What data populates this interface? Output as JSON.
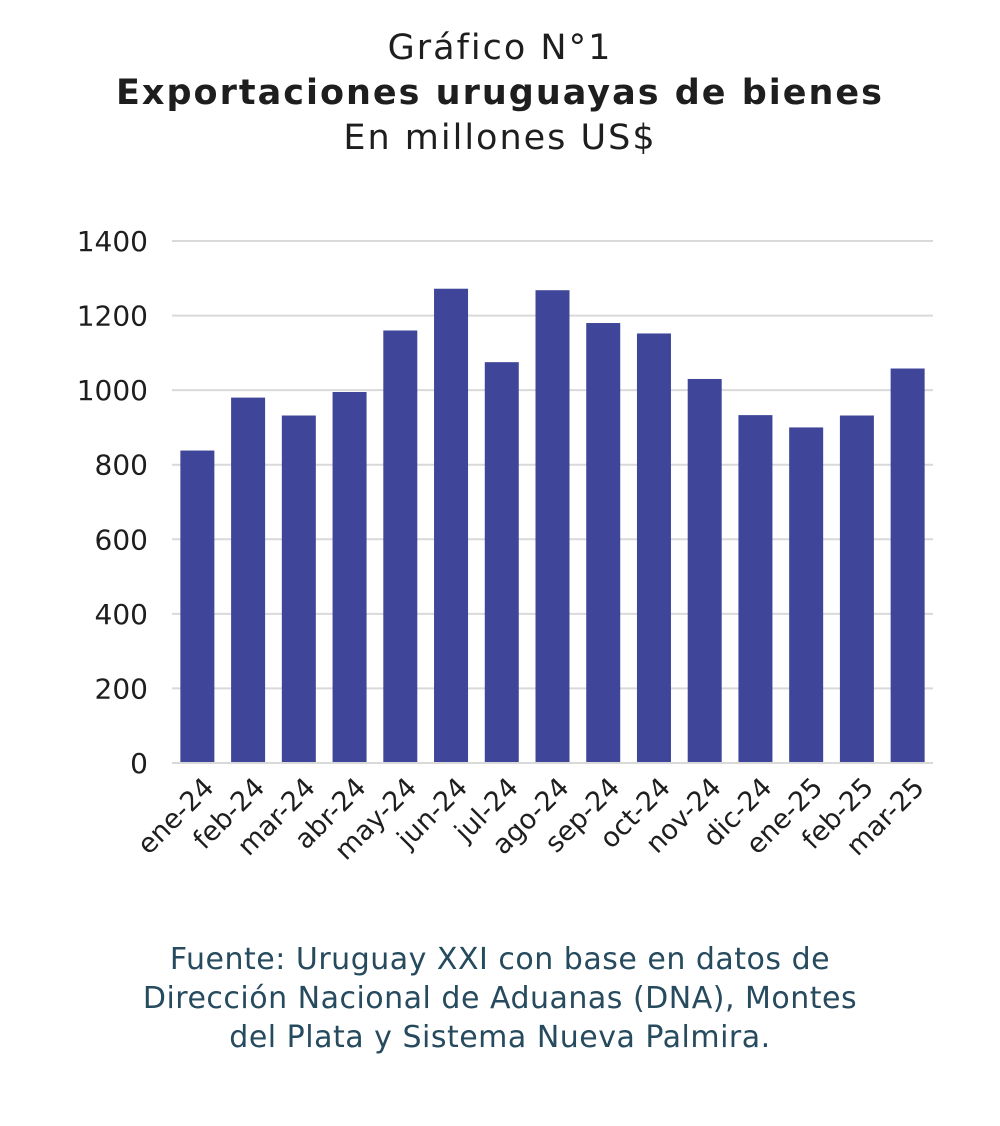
{
  "title": "Gráfico N°1",
  "subtitle": "Exportaciones uruguayas de bienes",
  "units": "En millones US$",
  "bar_color": "#3f4599",
  "grid_color": "#d9d9d9",
  "source_lines": [
    "Fuente: Uruguay XXI con base en datos de",
    "Dirección Nacional de Aduanas (DNA), Montes",
    "del Plata y Sistema Nueva Palmira."
  ],
  "chart_data": {
    "type": "bar",
    "title": "Exportaciones uruguayas de bienes",
    "subtitle": "En millones US$",
    "xlabel": "",
    "ylabel": "",
    "categories": [
      "ene-24",
      "feb-24",
      "mar-24",
      "abr-24",
      "may-24",
      "jun-24",
      "jul-24",
      "ago-24",
      "sep-24",
      "oct-24",
      "nov-24",
      "dic-24",
      "ene-25",
      "feb-25",
      "mar-25"
    ],
    "values": [
      838,
      980,
      932,
      995,
      1160,
      1272,
      1075,
      1268,
      1180,
      1152,
      1030,
      933,
      900,
      932,
      1058
    ],
    "ylim": [
      0,
      1400
    ],
    "yticks": [
      0,
      200,
      400,
      600,
      800,
      1000,
      1200,
      1400
    ],
    "grid": true,
    "legend": "none"
  }
}
